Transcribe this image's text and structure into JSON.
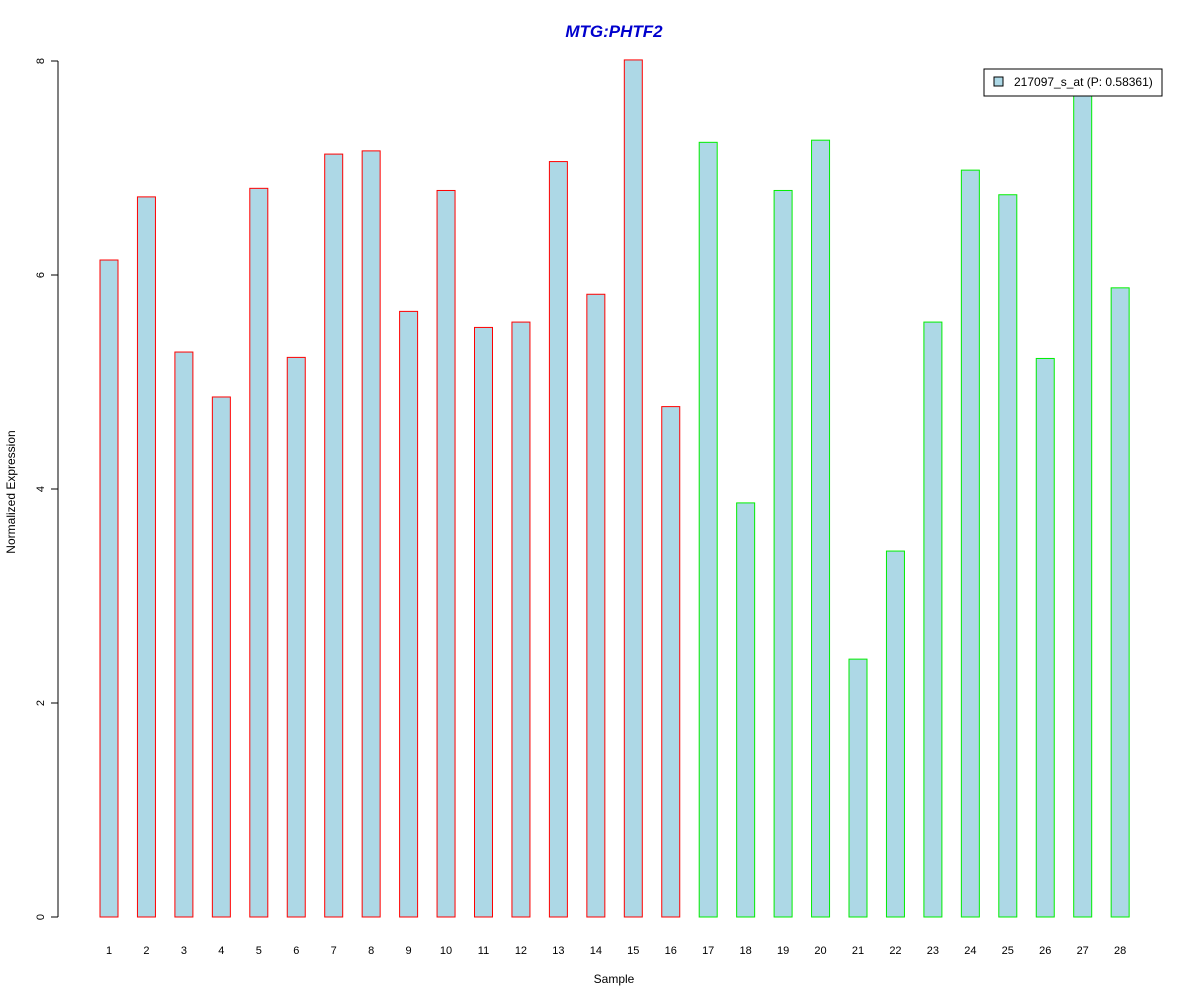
{
  "chart_data": {
    "type": "bar",
    "title": "MTG:PHTF2",
    "xlabel": "Sample",
    "ylabel": "Normalized Expression",
    "ylim": [
      0,
      8
    ],
    "yticks": [
      "0",
      "2",
      "4",
      "6",
      "8"
    ],
    "categories": [
      "1",
      "2",
      "3",
      "4",
      "5",
      "6",
      "7",
      "8",
      "9",
      "10",
      "11",
      "12",
      "13",
      "14",
      "15",
      "16",
      "17",
      "18",
      "19",
      "20",
      "21",
      "22",
      "23",
      "24",
      "25",
      "26",
      "27",
      "28"
    ],
    "values": [
      6.14,
      6.73,
      5.28,
      4.86,
      6.81,
      5.23,
      7.13,
      7.16,
      5.66,
      6.79,
      5.51,
      5.56,
      7.06,
      5.82,
      8.01,
      4.77,
      7.24,
      3.87,
      6.79,
      7.26,
      2.41,
      3.42,
      5.56,
      6.98,
      6.75,
      5.22,
      7.69,
      5.88
    ],
    "groups": [
      {
        "range": [
          1,
          16
        ],
        "border_color": "#ff0000"
      },
      {
        "range": [
          17,
          28
        ],
        "border_color": "#00ee00"
      }
    ],
    "fill_color": "#add8e6",
    "title_color": "#0000cd",
    "legend": {
      "position": "top-right",
      "entries": [
        {
          "label": "217097_s_at (P: 0.58361)",
          "color": "#add8e6"
        }
      ]
    },
    "grid": false
  }
}
